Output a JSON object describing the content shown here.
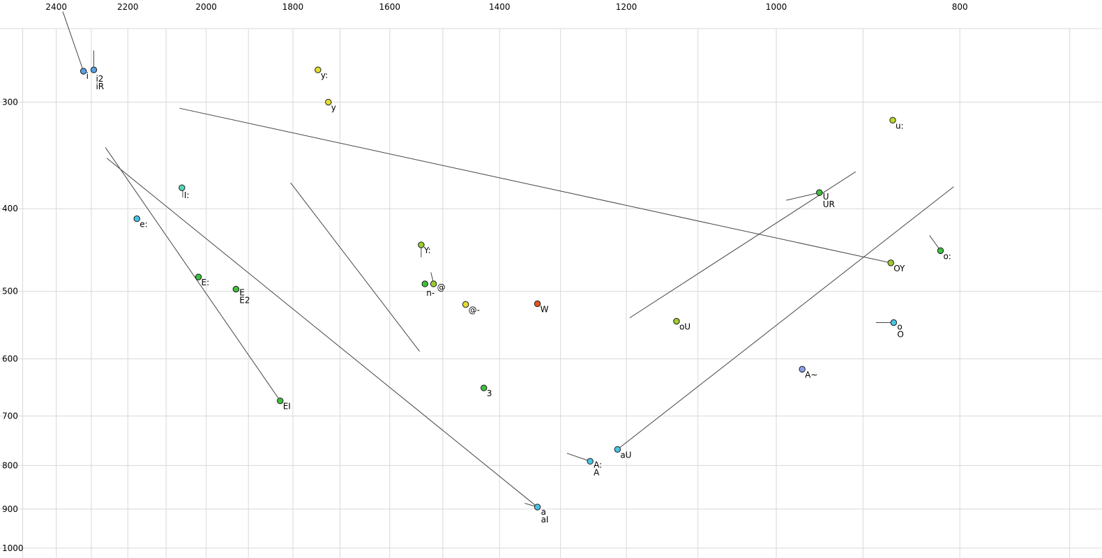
{
  "page": {
    "background": "#ffffff"
  },
  "chart_data": {
    "type": "scatter",
    "title": "",
    "xlabel": "",
    "ylabel": "",
    "x_axis": {
      "scale": "log",
      "orientation": "top",
      "direction": "decreasing-rightward",
      "range": [
        2570,
        673
      ],
      "tick_labels": [
        2400,
        2200,
        2000,
        1800,
        1600,
        1400,
        1200,
        1000,
        800
      ],
      "gridlines": [
        2500,
        2400,
        2300,
        2200,
        2100,
        2000,
        1900,
        1800,
        1700,
        1600,
        1500,
        1400,
        1300,
        1200,
        1100,
        1000,
        900,
        800,
        700
      ]
    },
    "y_axis": {
      "scale": "log",
      "orientation": "left",
      "direction": "increasing-downward",
      "range": [
        246,
        1027
      ],
      "tick_labels": [
        300,
        400,
        500,
        600,
        700,
        800,
        900,
        1000
      ],
      "gridlines": [
        300,
        400,
        500,
        600,
        700,
        800,
        900,
        1000
      ]
    },
    "colors": {
      "grid": "#d8d8d8",
      "trajectory": "#444444",
      "point_stroke": "#1a1a1a",
      "text": "#000000"
    },
    "points": [
      {
        "label": [
          "i"
        ],
        "f2": 2322,
        "f1": 276,
        "color": "#5a9fe0",
        "label_offset": [
          4,
          11
        ]
      },
      {
        "label": [
          "i2",
          "iR"
        ],
        "f2": 2293,
        "f1": 275,
        "color": "#5a9fe0",
        "label_offset": [
          3,
          17
        ]
      },
      {
        "label": [
          "y:"
        ],
        "f2": 1746,
        "f1": 275,
        "color": "#e3df2e"
      },
      {
        "label": [
          "y"
        ],
        "f2": 1724,
        "f1": 300,
        "color": "#e3df2e"
      },
      {
        "label": [
          "u:"
        ],
        "f2": 868,
        "f1": 315,
        "color": "#bcd829"
      },
      {
        "label": [
          "I:"
        ],
        "f2": 2060,
        "f1": 378,
        "color": "#55d6b8",
        "label_offset": [
          3,
          15
        ]
      },
      {
        "label": [
          "e:"
        ],
        "f2": 2176,
        "f1": 411,
        "color": "#49c4e5"
      },
      {
        "label": [
          "U",
          "UR"
        ],
        "f2": 949,
        "f1": 383,
        "color": "#3fbf3f",
        "label_offset": [
          5,
          10
        ]
      },
      {
        "label": [
          "Y:"
        ],
        "f2": 1540,
        "f1": 441,
        "color": "#9ccc2e"
      },
      {
        "label": [
          "o:"
        ],
        "f2": 819,
        "f1": 448,
        "color": "#3fbf3f"
      },
      {
        "label": [
          "OY"
        ],
        "f2": 870,
        "f1": 463,
        "color": "#9ccc2e"
      },
      {
        "label": [
          "E:"
        ],
        "f2": 2019,
        "f1": 481,
        "color": "#3fbf3f"
      },
      {
        "label": [
          "E",
          "E2"
        ],
        "f2": 1929,
        "f1": 497,
        "color": "#3fbf3f",
        "label_offset": [
          5,
          9
        ]
      },
      {
        "label": [
          "n-"
        ],
        "f2": 1533,
        "f1": 490,
        "color": "#3fbf3f",
        "label_offset": [
          2,
          17
        ]
      },
      {
        "label": [
          "@"
        ],
        "f2": 1517,
        "f1": 490,
        "color": "#9ccc2e",
        "label_offset": [
          5,
          9
        ]
      },
      {
        "label": [
          "@-"
        ],
        "f2": 1459,
        "f1": 518,
        "color": "#e3df2e"
      },
      {
        "label": [
          "W"
        ],
        "f2": 1337,
        "f1": 517,
        "color": "#e0561d"
      },
      {
        "label": [
          "oU"
        ],
        "f2": 1129,
        "f1": 542,
        "color": "#9ccc2e"
      },
      {
        "label": [
          "o",
          "O"
        ],
        "f2": 867,
        "f1": 544,
        "color": "#49c4e5",
        "label_offset": [
          5,
          10
        ]
      },
      {
        "label": [
          "A~"
        ],
        "f2": 969,
        "f1": 617,
        "color": "#8f9fe8"
      },
      {
        "label": [
          "3"
        ],
        "f2": 1427,
        "f1": 649,
        "color": "#3fbf3f"
      },
      {
        "label": [
          "EI"
        ],
        "f2": 1828,
        "f1": 672,
        "color": "#3fbf3f"
      },
      {
        "label": [
          "aU"
        ],
        "f2": 1213,
        "f1": 766,
        "color": "#49c4e5"
      },
      {
        "label": [
          "A:",
          "A"
        ],
        "f2": 1254,
        "f1": 791,
        "color": "#49c4e5",
        "label_offset": [
          5,
          9
        ]
      },
      {
        "label": [
          "a",
          "aI"
        ],
        "f2": 1337,
        "f1": 895,
        "color": "#49c4e5",
        "label_offset": [
          5,
          11
        ]
      }
    ],
    "lines": [
      [
        2381,
        235,
        2322,
        276
      ],
      [
        2293,
        261,
        2293,
        275
      ],
      [
        2261,
        339,
        1828,
        672
      ],
      [
        2257,
        349,
        1337,
        895
      ],
      [
        2066,
        305,
        870,
        463
      ],
      [
        1805,
        373,
        1543,
        588
      ],
      [
        1195,
        537,
        908,
        362
      ],
      [
        1213,
        766,
        806,
        377
      ],
      [
        988,
        391,
        949,
        383
      ],
      [
        830,
        430,
        819,
        448
      ],
      [
        886,
        544,
        868,
        544
      ],
      [
        1290,
        774,
        1256,
        790
      ],
      [
        1358,
        886,
        1339,
        894
      ],
      [
        1522,
        475,
        1517,
        489
      ],
      [
        1540,
        444,
        1540,
        456
      ],
      [
        2058,
        380,
        2058,
        388
      ]
    ]
  }
}
